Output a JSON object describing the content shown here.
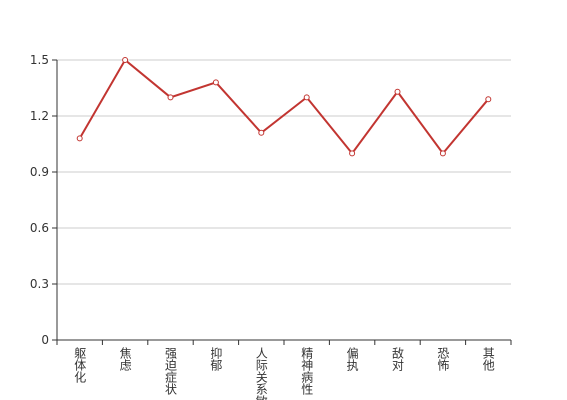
{
  "chart_data": {
    "type": "line",
    "categories": [
      "躯体化",
      "焦虑",
      "强迫症状",
      "抑郁",
      "人际关系敏感",
      "精神病性",
      "偏执",
      "敌对",
      "恐怖",
      "其他"
    ],
    "values": [
      1.08,
      1.5,
      1.3,
      1.38,
      1.11,
      1.3,
      1.0,
      1.33,
      1.0,
      1.29
    ],
    "color": "#c23531",
    "ylim": [
      0,
      1.5
    ],
    "yticks": [
      0,
      0.3,
      0.6,
      0.9,
      1.2,
      1.5
    ],
    "grid": true
  }
}
